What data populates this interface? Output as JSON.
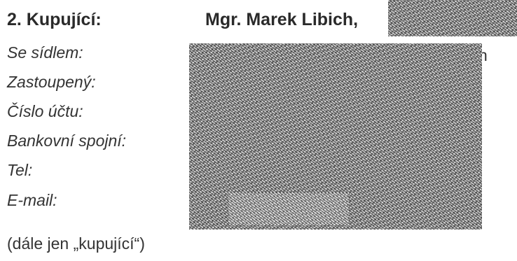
{
  "section": {
    "heading": "2. Kupující:",
    "buyer_name": "Mgr. Marek Libich,"
  },
  "fields": [
    {
      "label": "Se sídlem:"
    },
    {
      "label": "Zastoupený:"
    },
    {
      "label": "Číslo účtu:"
    },
    {
      "label": "Bankovní spojní:"
    },
    {
      "label": "Tel:"
    },
    {
      "label": "E-mail:"
    }
  ],
  "trailing_char": "n",
  "footer_note": "(dále jen „kupující“)"
}
